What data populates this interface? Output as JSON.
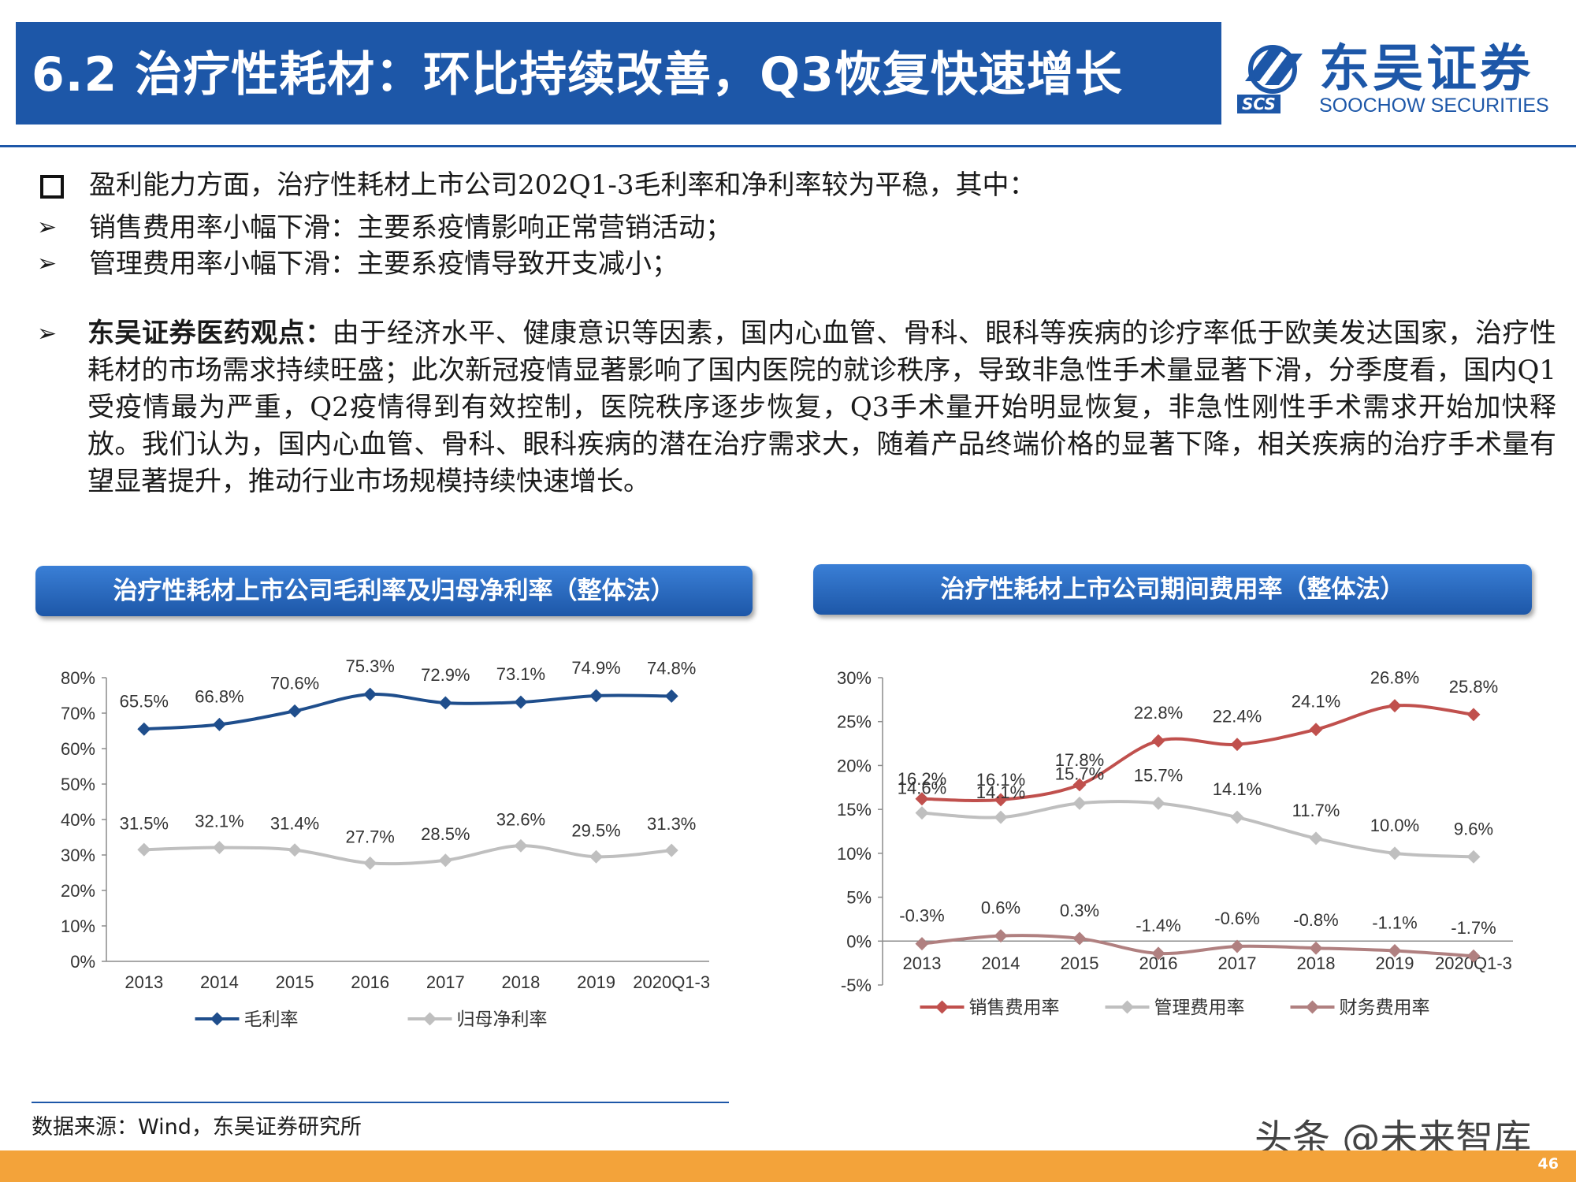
{
  "header": {
    "title": "6.2 治疗性耗材：环比持续改善，Q3恢复快速增长",
    "logo_cn": "东吴证券",
    "logo_en": "SOOCHOW SECURITIES",
    "logo_abbr": "SCS"
  },
  "bullets": [
    {
      "icon": "square-bullet-icon",
      "text": "盈利能力方面，治疗性耗材上市公司202Q1-3毛利率和净利率较为平稳，其中："
    },
    {
      "icon": "arrow-bullet-icon",
      "text": "销售费用率小幅下滑：主要系疫情影响正常营销活动；"
    },
    {
      "icon": "arrow-bullet-icon",
      "text": "管理费用率小幅下滑：主要系疫情导致开支减小；"
    }
  ],
  "view": {
    "lead": "东吴证券医药观点：",
    "text": "由于经济水平、健康意识等因素，国内心血管、骨科、眼科等疾病的诊疗率低于欧美发达国家，治疗性耗材的市场需求持续旺盛；此次新冠疫情显著影响了国内医院的就诊秩序，导致非急性手术量显著下滑，分季度看，国内Q1受疫情最为严重，Q2疫情得到有效控制，医院秩序逐步恢复，Q3手术量开始明显恢复，非急性刚性手术需求开始加快释放。我们认为，国内心血管、骨科、眼科疾病的潜在治疗需求大，随着产品终端价格的显著下降，相关疾病的治疗手术量有望显著提升，推动行业市场规模持续快速增长。"
  },
  "chart_data": [
    {
      "type": "line",
      "title": "治疗性耗材上市公司毛利率及归母净利率（整体法）",
      "categories": [
        "2013",
        "2014",
        "2015",
        "2016",
        "2017",
        "2018",
        "2019",
        "2020Q1-3"
      ],
      "ylim": [
        0,
        80
      ],
      "yticks": [
        "0%",
        "10%",
        "20%",
        "30%",
        "40%",
        "50%",
        "60%",
        "70%",
        "80%"
      ],
      "legend_position": "bottom",
      "series": [
        {
          "name": "毛利率",
          "color": "#1f4e8c",
          "values": [
            65.5,
            66.8,
            70.6,
            75.3,
            72.9,
            73.1,
            74.9,
            74.8
          ],
          "labels": [
            "65.5%",
            "66.8%",
            "70.6%",
            "75.3%",
            "72.9%",
            "73.1%",
            "74.9%",
            "74.8%"
          ]
        },
        {
          "name": "归母净利率",
          "color": "#bfbfbf",
          "values": [
            31.5,
            32.1,
            31.4,
            27.7,
            28.5,
            32.6,
            29.5,
            31.3
          ],
          "labels": [
            "31.5%",
            "32.1%",
            "31.4%",
            "27.7%",
            "28.5%",
            "32.6%",
            "29.5%",
            "31.3%"
          ]
        }
      ]
    },
    {
      "type": "line",
      "title": "治疗性耗材上市公司期间费用率（整体法）",
      "categories": [
        "2013",
        "2014",
        "2015",
        "2016",
        "2017",
        "2018",
        "2019",
        "2020Q1-3"
      ],
      "ylim": [
        -5,
        30
      ],
      "yticks": [
        "-5%",
        "0%",
        "5%",
        "10%",
        "15%",
        "20%",
        "25%",
        "30%"
      ],
      "legend_position": "bottom",
      "series": [
        {
          "name": "销售费用率",
          "color": "#c0504d",
          "values": [
            16.2,
            16.1,
            17.8,
            22.8,
            22.4,
            24.1,
            26.8,
            25.8
          ],
          "labels": [
            "16.2%",
            "16.1%",
            "17.8%",
            "22.8%",
            "22.4%",
            "24.1%",
            "26.8%",
            "25.8%"
          ]
        },
        {
          "name": "管理费用率",
          "color": "#bfbfbf",
          "values": [
            14.6,
            14.1,
            15.7,
            15.7,
            14.1,
            11.7,
            10.0,
            9.6
          ],
          "labels": [
            "14.6%",
            "14.1%",
            "15.7%",
            "15.7%",
            "14.1%",
            "11.7%",
            "10.0%",
            "9.6%"
          ]
        },
        {
          "name": "财务费用率",
          "color": "#b08080",
          "values": [
            -0.3,
            0.6,
            0.3,
            -1.4,
            -0.6,
            -0.8,
            -1.1,
            -1.7
          ],
          "labels": [
            "-0.3%",
            "0.6%",
            "0.3%",
            "-1.4%",
            "-0.6%",
            "-0.8%",
            "-1.1%",
            "-1.7%"
          ]
        }
      ]
    }
  ],
  "footer": {
    "source": "数据来源：Wind，东吴证券研究所",
    "watermark": "头条 @未来智库",
    "page": "46"
  }
}
